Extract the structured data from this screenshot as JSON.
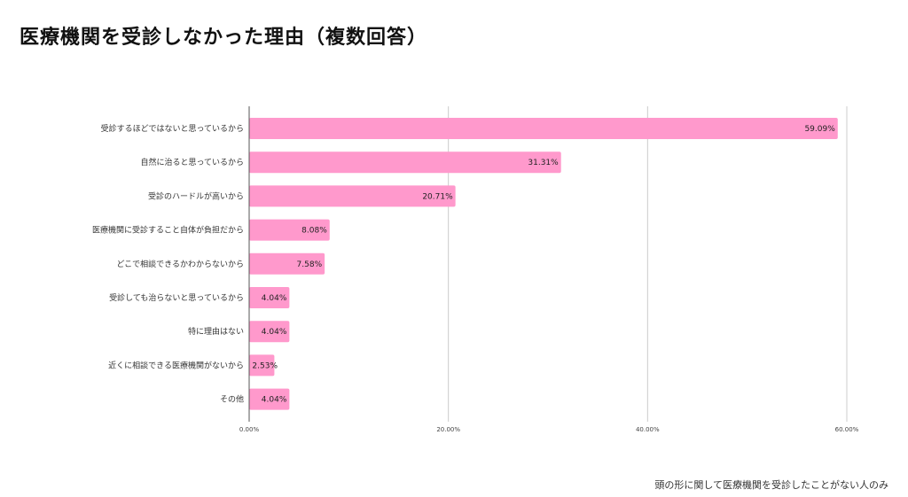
{
  "chart_data": {
    "type": "bar",
    "orientation": "horizontal",
    "title": "医療機関を受診しなかった理由（複数回答）",
    "note": "頭の形に関して医療機関を受診したことがない人のみ",
    "categories": [
      "受診するほどではないと思っているから",
      "自然に治ると思っているから",
      "受診のハードルが高いから",
      "医療機関に受診すること自体が負担だから",
      "どこで相談できるかわからないから",
      "受診しても治らないと思っているから",
      "特に理由はない",
      "近くに相談できる医療機関がないから",
      "その他"
    ],
    "values": [
      59.09,
      31.31,
      20.71,
      8.08,
      7.58,
      4.04,
      4.04,
      2.53,
      4.04
    ],
    "value_labels": [
      "59.09%",
      "31.31%",
      "20.71%",
      "8.08%",
      "7.58%",
      "4.04%",
      "4.04%",
      "2.53%",
      "4.04%"
    ],
    "xlim": [
      0,
      60
    ],
    "xticks": [
      0,
      20,
      40,
      60
    ],
    "xtick_labels": [
      "0.00%",
      "20.00%",
      "40.00%",
      "60.00%"
    ],
    "grid": true,
    "bar_color": "#ff99cc"
  }
}
